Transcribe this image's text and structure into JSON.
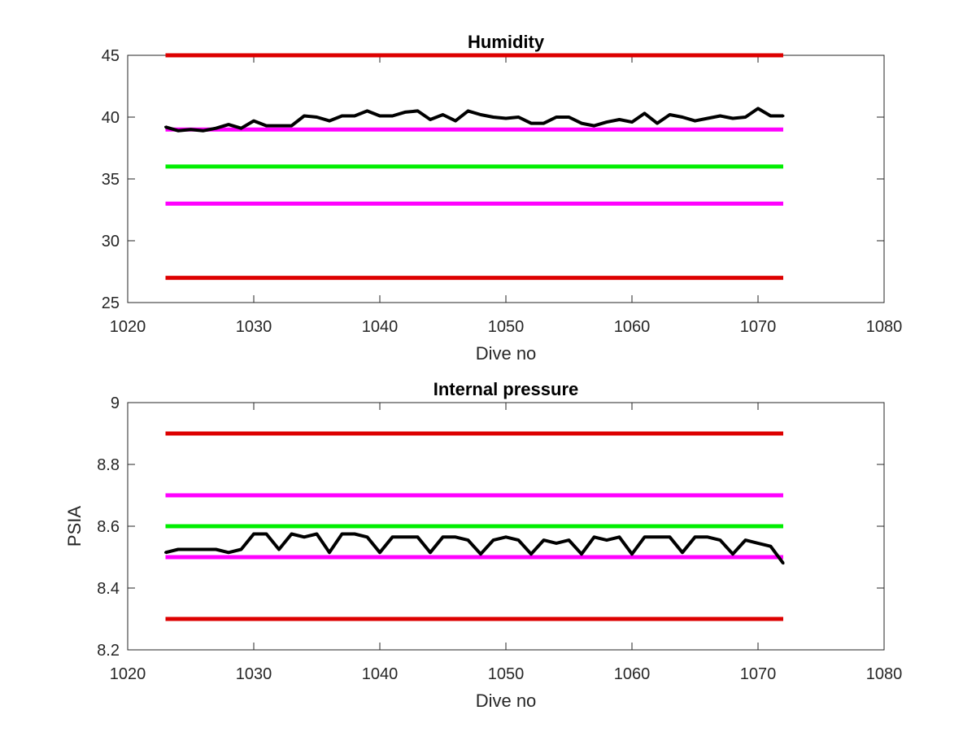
{
  "chart_data": [
    {
      "type": "line",
      "title": "Humidity",
      "xlabel": "Dive no",
      "ylabel": "",
      "xlim": [
        1020,
        1080
      ],
      "ylim": [
        25,
        45
      ],
      "xticks": [
        1020,
        1030,
        1040,
        1050,
        1060,
        1070,
        1080
      ],
      "yticks": [
        25,
        30,
        35,
        40,
        45
      ],
      "grid": false,
      "hlines": [
        {
          "y": 45,
          "x": [
            1023,
            1072
          ],
          "color": "#dd0000"
        },
        {
          "y": 39,
          "x": [
            1023,
            1072
          ],
          "color": "#ff00ff"
        },
        {
          "y": 36,
          "x": [
            1023,
            1072
          ],
          "color": "#00ee00"
        },
        {
          "y": 33,
          "x": [
            1023,
            1072
          ],
          "color": "#ff00ff"
        },
        {
          "y": 27,
          "x": [
            1023,
            1072
          ],
          "color": "#dd0000"
        }
      ],
      "series": [
        {
          "color": "#000000",
          "x": [
            1023,
            1024,
            1025,
            1026,
            1027,
            1028,
            1029,
            1030,
            1031,
            1032,
            1033,
            1034,
            1035,
            1036,
            1037,
            1038,
            1039,
            1040,
            1041,
            1042,
            1043,
            1044,
            1045,
            1046,
            1047,
            1048,
            1049,
            1050,
            1051,
            1052,
            1053,
            1054,
            1055,
            1056,
            1057,
            1058,
            1059,
            1060,
            1061,
            1062,
            1063,
            1064,
            1065,
            1066,
            1067,
            1068,
            1069,
            1070,
            1071,
            1072
          ],
          "values": [
            39.2,
            38.9,
            39.0,
            38.9,
            39.1,
            39.4,
            39.1,
            39.7,
            39.3,
            39.3,
            39.3,
            40.1,
            40.0,
            39.7,
            40.1,
            40.1,
            40.5,
            40.1,
            40.1,
            40.4,
            40.5,
            39.8,
            40.2,
            39.7,
            40.5,
            40.2,
            40.0,
            39.9,
            40.0,
            39.5,
            39.5,
            40.0,
            40.0,
            39.5,
            39.3,
            39.6,
            39.8,
            39.6,
            40.3,
            39.5,
            40.2,
            40.0,
            39.7,
            39.9,
            40.1,
            39.9,
            40.0,
            40.7,
            40.1,
            40.1
          ]
        }
      ]
    },
    {
      "type": "line",
      "title": "Internal pressure",
      "xlabel": "Dive no",
      "ylabel": "PSIA",
      "xlim": [
        1020,
        1080
      ],
      "ylim": [
        8.2,
        9.0
      ],
      "xticks": [
        1020,
        1030,
        1040,
        1050,
        1060,
        1070,
        1080
      ],
      "yticks": [
        8.2,
        8.4,
        8.6,
        8.8,
        9.0
      ],
      "ytick_labels": [
        "8.2",
        "8.4",
        "8.6",
        "8.8",
        "9"
      ],
      "grid": false,
      "hlines": [
        {
          "y": 8.9,
          "x": [
            1023,
            1072
          ],
          "color": "#dd0000"
        },
        {
          "y": 8.7,
          "x": [
            1023,
            1072
          ],
          "color": "#ff00ff"
        },
        {
          "y": 8.6,
          "x": [
            1023,
            1072
          ],
          "color": "#00ee00"
        },
        {
          "y": 8.5,
          "x": [
            1023,
            1072
          ],
          "color": "#ff00ff"
        },
        {
          "y": 8.3,
          "x": [
            1023,
            1072
          ],
          "color": "#dd0000"
        }
      ],
      "series": [
        {
          "color": "#000000",
          "x": [
            1023,
            1024,
            1025,
            1026,
            1027,
            1028,
            1029,
            1030,
            1031,
            1032,
            1033,
            1034,
            1035,
            1036,
            1037,
            1038,
            1039,
            1040,
            1041,
            1042,
            1043,
            1044,
            1045,
            1046,
            1047,
            1048,
            1049,
            1050,
            1051,
            1052,
            1053,
            1054,
            1055,
            1056,
            1057,
            1058,
            1059,
            1060,
            1061,
            1062,
            1063,
            1064,
            1065,
            1066,
            1067,
            1068,
            1069,
            1070,
            1071,
            1072
          ],
          "values": [
            8.515,
            8.525,
            8.525,
            8.525,
            8.525,
            8.515,
            8.525,
            8.575,
            8.575,
            8.525,
            8.575,
            8.565,
            8.575,
            8.515,
            8.575,
            8.575,
            8.565,
            8.515,
            8.565,
            8.565,
            8.565,
            8.515,
            8.565,
            8.565,
            8.555,
            8.51,
            8.555,
            8.565,
            8.555,
            8.51,
            8.555,
            8.545,
            8.555,
            8.51,
            8.565,
            8.555,
            8.565,
            8.51,
            8.565,
            8.565,
            8.565,
            8.515,
            8.565,
            8.565,
            8.555,
            8.51,
            8.555,
            8.545,
            8.535,
            8.48
          ]
        }
      ]
    }
  ]
}
